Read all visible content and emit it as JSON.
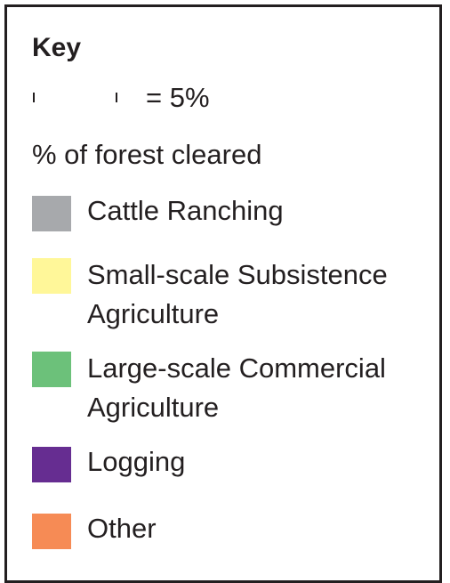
{
  "key": {
    "title": "Key",
    "scale_text": "= 5%",
    "subtitle": "% of forest cleared",
    "items": [
      {
        "label": "Cattle Ranching",
        "color": "#a7a9ac"
      },
      {
        "label": "Small-scale Subsistence Agriculture",
        "color": "#fff799"
      },
      {
        "label": "Large-scale Commercial Agriculture",
        "color": "#6cc17a"
      },
      {
        "label": "Logging",
        "color": "#662d91"
      },
      {
        "label": "Other",
        "color": "#f68b55"
      }
    ]
  }
}
